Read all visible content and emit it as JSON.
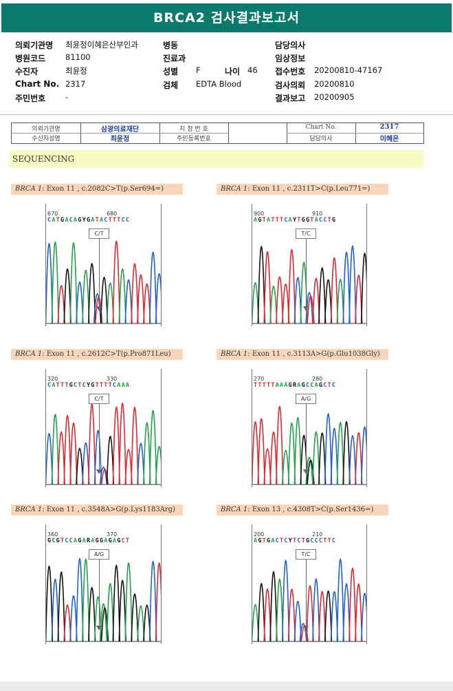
{
  "title": "BRCA2 검사결과보고서",
  "header": {
    "institution_label": "의뢰기관명",
    "institution_value": "최윤정이혜은산부인과",
    "ward_label": "병동",
    "doctor_label": "담당의사",
    "hospital_code_label": "병원코드",
    "hospital_code_value": "81100",
    "dept_label": "진료과",
    "clinical_label": "임상정보",
    "patient_label": "수진자",
    "patient_value": "최윤정",
    "sex_label": "성별",
    "sex_value": "F",
    "age_label": "나이",
    "age_value": "46",
    "receipt_label": "접수번호",
    "receipt_value": "20200810-47167",
    "chart_label": "Chart No.",
    "chart_value": "2317",
    "specimen_label": "검체",
    "specimen_value": "EDTA Blood",
    "request_label": "검사의뢰",
    "request_value": "20200810",
    "id_label": "주민번호",
    "id_value": "-",
    "report_label": "결과보고",
    "report_value": "20200905"
  },
  "scan_table": {
    "inst_label": "의뢰기관명",
    "inst_value": "삼광의료재단",
    "spec_no_label": "지 정 번 호",
    "chart_label": "Chart No.",
    "chart_value": "2317",
    "recipient_label": "수신자성명",
    "recipient_value": "최윤정",
    "resident_label": "주민등록번호",
    "doctor_label": "담당의사",
    "doctor_value": "이혜은"
  },
  "section_title": "SEQUENCING",
  "colors": {
    "header_bg": "#0b7a6c",
    "label_bg": "#f8d6bc",
    "section_bg": "#f9fbc4",
    "A": "#1fa24a",
    "C": "#1f5fd1",
    "G": "#111111",
    "T": "#e0262f"
  },
  "variants": [
    {
      "gene": "BRCA 1",
      "desc": ": Exon 11 , c.2082C>T(p.Ser694=)",
      "pos1": "670",
      "pos2": "680",
      "bases": "CATGACAGYGATACTTTCC",
      "genotype": "C/T"
    },
    {
      "gene": "BRCA 1",
      "desc": ": Exon 11 , c.2311T>C(p.Leu771=)",
      "pos1": "900",
      "pos2": "910",
      "bases": "AGTATTTCAYTGGTACCTG",
      "genotype": "T/C"
    },
    {
      "gene": "BRCA 1",
      "desc": ": Exon 11 , c.2612C>T(p.Pro871Leu)",
      "pos1": "320",
      "pos2": "330",
      "bases": "CATTTGCTCYGTTTTCAAA",
      "genotype": "C/T"
    },
    {
      "gene": "BRCA 1",
      "desc": ": Exon 11 , c.3113A>G(p.Glu1038Gly)",
      "pos1": "270",
      "pos2": "280",
      "bases": "TTTTTAAAGRAGCCAGCTC",
      "genotype": "A/G"
    },
    {
      "gene": "BRCA 1",
      "desc": ": Exon 11 , c.3548A>G(p.Lys1183Arg)",
      "pos1": "360",
      "pos2": "370",
      "bases": "GCGTCCAGARAGGAGAGCT",
      "genotype": "A/G"
    },
    {
      "gene": "BRCA 1",
      "desc": ": Exon 13 , c.4308T>C(p.Ser1436=)",
      "pos1": "200",
      "pos2": "210",
      "bases": "AGTGACTCYTCTGCCCTTC",
      "genotype": "T/C"
    }
  ]
}
